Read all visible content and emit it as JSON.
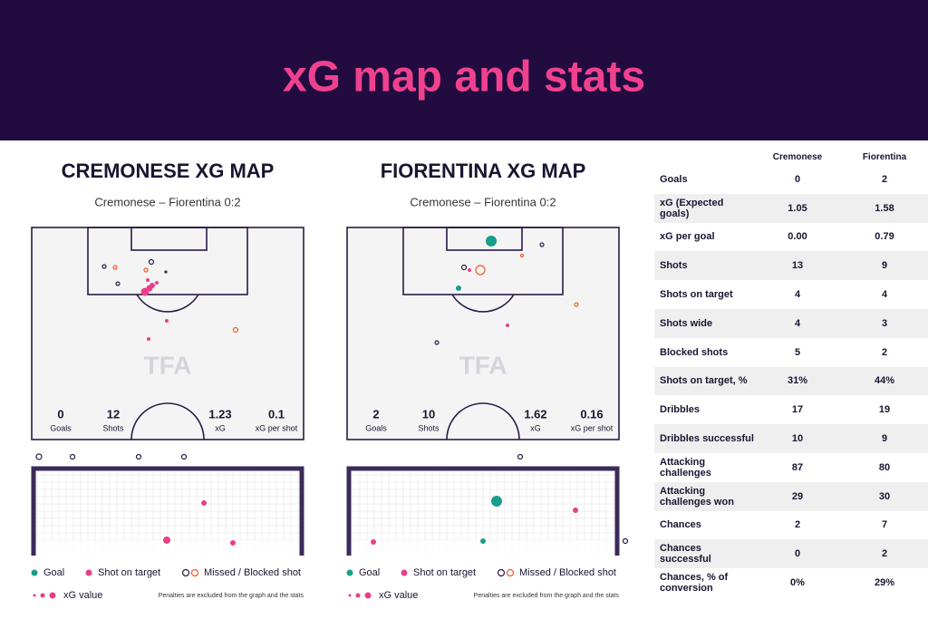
{
  "header": {
    "title": "xG map and stats"
  },
  "maps": [
    {
      "title": "CREMONESE XG MAP",
      "subtitle": "Cremonese – Fiorentina 0:2",
      "watermark": "TFA",
      "stats": [
        {
          "value": "0",
          "label": "Goals"
        },
        {
          "value": "12",
          "label": "Shots"
        },
        {
          "value": "1.23",
          "label": "xG"
        },
        {
          "value": "0.1",
          "label": "xG per shot"
        }
      ]
    },
    {
      "title": "FIORENTINA XG MAP",
      "subtitle": "Cremonese – Fiorentina 0:2",
      "watermark": "TFA",
      "stats": [
        {
          "value": "2",
          "label": "Goals"
        },
        {
          "value": "10",
          "label": "Shots"
        },
        {
          "value": "1.62",
          "label": "xG"
        },
        {
          "value": "0.16",
          "label": "xG per shot"
        }
      ]
    }
  ],
  "legend": {
    "goal": "Goal",
    "on_target": "Shot on target",
    "missed": "Missed / Blocked shot",
    "xg": "xG value",
    "note": "Penalties are excluded from the graph and the stats"
  },
  "table": {
    "columns": [
      "Cremonese",
      "Fiorentina"
    ],
    "rows": [
      [
        "Goals",
        "0",
        "2"
      ],
      [
        "xG (Expected goals)",
        "1.05",
        "1.58"
      ],
      [
        "xG per goal",
        "0.00",
        "0.79"
      ],
      [
        "Shots",
        "13",
        "9"
      ],
      [
        "Shots on target",
        "4",
        "4"
      ],
      [
        "Shots wide",
        "4",
        "3"
      ],
      [
        "Blocked shots",
        "5",
        "2"
      ],
      [
        "Shots on target, %",
        "31%",
        "44%"
      ],
      [
        "Dribbles",
        "17",
        "19"
      ],
      [
        "Dribbles successful",
        "10",
        "9"
      ],
      [
        "Attacking challenges",
        "87",
        "80"
      ],
      [
        "Attacking challenges won",
        "29",
        "30"
      ],
      [
        "Chances",
        "2",
        "7"
      ],
      [
        "Chances successful",
        "0",
        "2"
      ],
      [
        "Chances, % of conversion",
        "0%",
        "29%"
      ]
    ]
  }
}
